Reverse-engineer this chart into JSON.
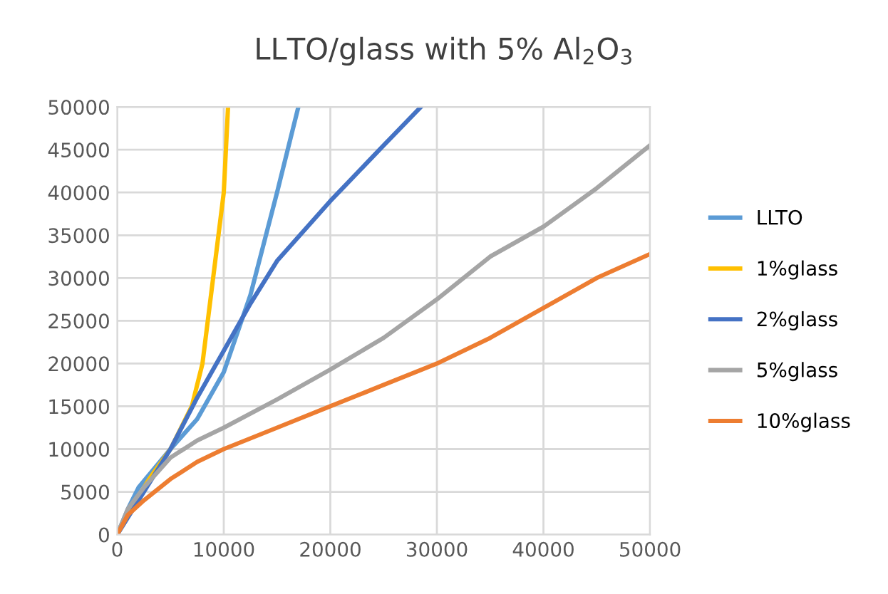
{
  "chart_data": {
    "type": "line",
    "title": "LLTO/glass with 5% Al$_{2}$O$_{3}$",
    "xlim": [
      0,
      50000
    ],
    "ylim": [
      0,
      50000
    ],
    "xticks": [
      0,
      10000,
      20000,
      30000,
      40000,
      50000
    ],
    "yticks": [
      0,
      5000,
      10000,
      15000,
      20000,
      25000,
      30000,
      35000,
      40000,
      45000,
      50000
    ],
    "grid": true,
    "legend": "right",
    "marker": "none",
    "line_style": "solid",
    "series": [
      {
        "name": "LLTO",
        "color": "#5b9bd5",
        "x": [
          0,
          1000,
          2000,
          5000,
          7500,
          10000,
          12500,
          15000,
          17000
        ],
        "values": [
          0,
          3000,
          5500,
          10000,
          13500,
          19000,
          28000,
          40000,
          50000
        ]
      },
      {
        "name": "1%glass",
        "color": "#ffc000",
        "x": [
          0,
          1000,
          3000,
          5000,
          7000,
          8000,
          9000,
          10000,
          10400
        ],
        "values": [
          0,
          2500,
          6500,
          10000,
          15000,
          20000,
          30000,
          40000,
          50000
        ]
      },
      {
        "name": "2%glass",
        "color": "#4472c4",
        "x": [
          0,
          1000,
          2500,
          5000,
          7500,
          10000,
          12500,
          15000,
          20000,
          25000,
          28500
        ],
        "values": [
          0,
          2000,
          5000,
          10000,
          16000,
          21500,
          27000,
          32000,
          39000,
          45500,
          50000
        ]
      },
      {
        "name": "5%glass",
        "color": "#a5a5a5",
        "x": [
          0,
          1000,
          2500,
          5000,
          7500,
          10000,
          15000,
          20000,
          25000,
          30000,
          35000,
          40000,
          45000,
          50000
        ],
        "values": [
          0,
          3000,
          5500,
          9000,
          11000,
          12500,
          15800,
          19300,
          23000,
          27500,
          32500,
          36000,
          40500,
          45500
        ]
      },
      {
        "name": "10%glass",
        "color": "#ed7d31",
        "x": [
          0,
          1000,
          2500,
          5000,
          7500,
          10000,
          15000,
          20000,
          25000,
          30000,
          35000,
          40000,
          45000,
          50000
        ],
        "values": [
          0,
          2300,
          4000,
          6500,
          8500,
          10000,
          12500,
          15000,
          17500,
          20000,
          23000,
          26500,
          30000,
          32800
        ]
      }
    ]
  }
}
